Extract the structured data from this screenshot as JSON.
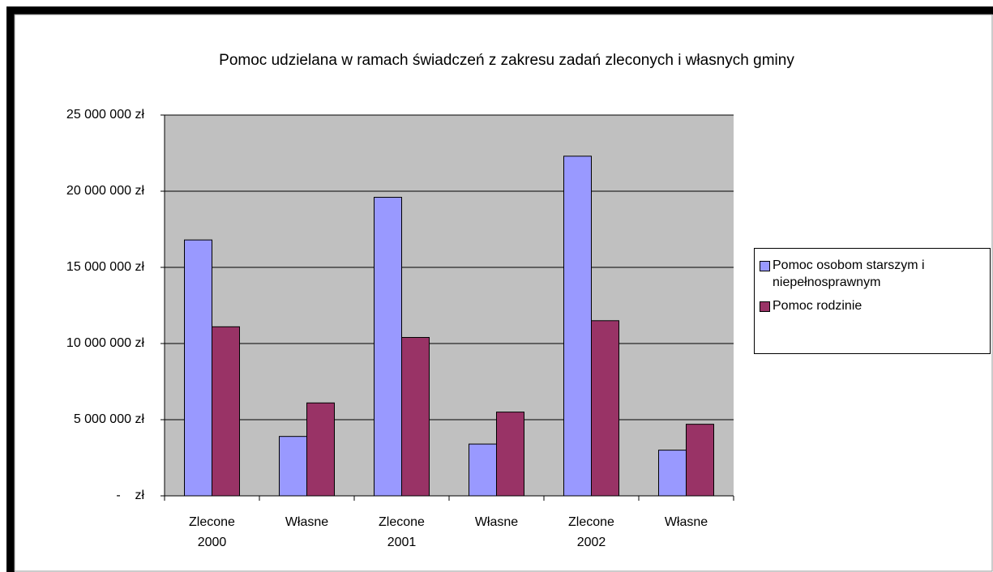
{
  "chart_data": {
    "type": "bar",
    "title": "Pomoc udzielana w ramach świadczeń z zakresu zadań zleconych i własnych gminy",
    "categories": [
      "Zlecone 2000",
      "Własne",
      "Zlecone 2001",
      "Własne",
      "Zlecone 2002",
      "Własne"
    ],
    "series": [
      {
        "name": "Pomoc osobom starszym i niepełnosprawnym",
        "color": "#9999ff",
        "values": [
          16800000,
          3900000,
          19600000,
          3400000,
          22300000,
          3000000
        ]
      },
      {
        "name": "Pomoc rodzinie",
        "color": "#993366",
        "values": [
          11100000,
          6100000,
          10400000,
          5500000,
          11500000,
          4700000
        ]
      }
    ],
    "ylim": [
      0,
      25000000
    ],
    "yticks": [
      {
        "value": 0,
        "label": "-    zł"
      },
      {
        "value": 5000000,
        "label": "5 000 000 zł"
      },
      {
        "value": 10000000,
        "label": "10 000 000 zł"
      },
      {
        "value": 15000000,
        "label": "15 000 000 zł"
      },
      {
        "value": 20000000,
        "label": "20 000 000 zł"
      },
      {
        "value": 25000000,
        "label": "25 000 000 zł"
      }
    ],
    "grid": true,
    "plot_background": "#c0c0c0",
    "legend": "right"
  }
}
